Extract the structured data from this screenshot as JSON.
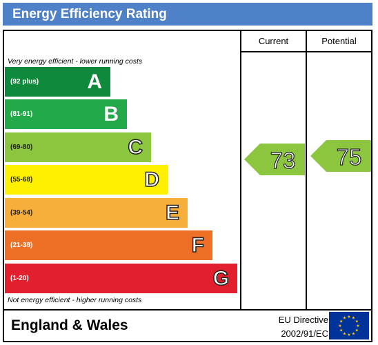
{
  "title": "Energy Efficiency Rating",
  "columns": {
    "current": "Current",
    "potential": "Potential"
  },
  "top_note": "Very energy efficient - lower running costs",
  "bottom_note": "Not energy efficient - higher running costs",
  "chart_data": {
    "type": "bar",
    "categories": [
      "A",
      "B",
      "C",
      "D",
      "E",
      "F",
      "G"
    ],
    "ranges": [
      "(92 plus)",
      "(81-91)",
      "(69-80)",
      "(55-68)",
      "(39-54)",
      "(21-38)",
      "(1-20)"
    ],
    "colors": [
      "#0f8a3c",
      "#22a94a",
      "#8cc63f",
      "#ffef00",
      "#f8ae3b",
      "#ee6f26",
      "#e21f2e"
    ],
    "current": {
      "value": 73,
      "band": "C",
      "color": "#8cc63f"
    },
    "potential": {
      "value": 75,
      "band": "C",
      "color": "#8cc63f"
    }
  },
  "footer": {
    "region": "England & Wales",
    "directive_line1": "EU Directive",
    "directive_line2": "2002/91/EC"
  },
  "flag": {
    "icon": "eu-flag-icon",
    "background": "#003399",
    "star_color": "#ffcc00"
  }
}
